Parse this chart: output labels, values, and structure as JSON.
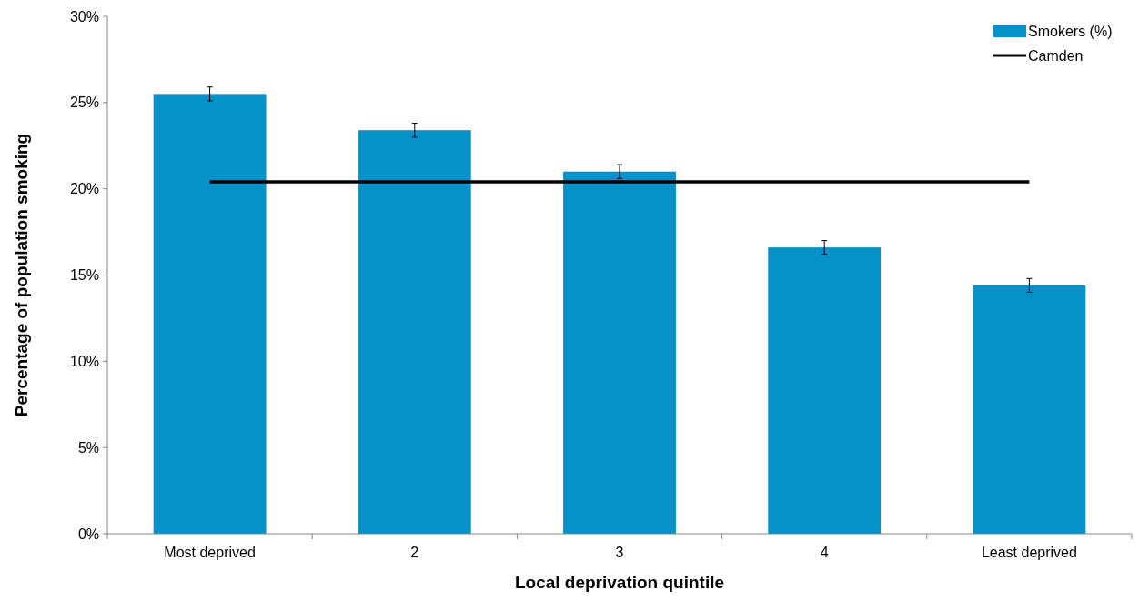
{
  "chart_data": {
    "type": "bar",
    "xlabel": "Local deprivation quintile",
    "ylabel": "Percentage of population smoking",
    "categories": [
      "Most deprived",
      "2",
      "3",
      "4",
      "Least deprived"
    ],
    "series": [
      {
        "name": "Smokers (%)",
        "color": "#0492c8",
        "values": [
          25.5,
          23.4,
          21.0,
          16.6,
          14.4
        ],
        "errors": [
          0.4,
          0.4,
          0.4,
          0.4,
          0.4
        ]
      },
      {
        "name": "Camden",
        "type": "line",
        "color": "#000000",
        "values": [
          20.4,
          20.4,
          20.4,
          20.4,
          20.4
        ]
      }
    ],
    "ylim": [
      0,
      30
    ],
    "yticks": [
      {
        "value": 0,
        "label": "0%"
      },
      {
        "value": 5,
        "label": "5%"
      },
      {
        "value": 10,
        "label": "10%"
      },
      {
        "value": 15,
        "label": "15%"
      },
      {
        "value": 20,
        "label": "20%"
      },
      {
        "value": 25,
        "label": "25%"
      },
      {
        "value": 30,
        "label": "30%"
      }
    ],
    "grid": false,
    "legend": "top right",
    "marker": "none",
    "line_style": "solid"
  }
}
